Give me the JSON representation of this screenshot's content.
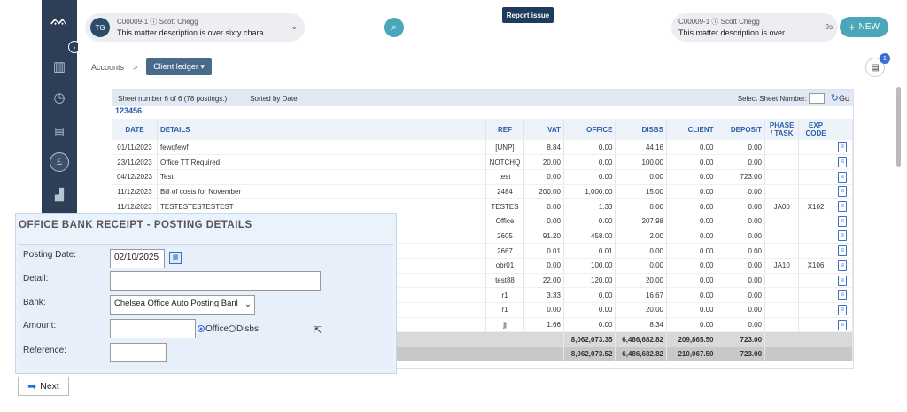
{
  "header": {
    "matter_left": {
      "avatar": "TG",
      "code": "C00009-1",
      "client": "Scott Chegg",
      "description": "This matter description is over sixty chara..."
    },
    "report_issue": "Report issue",
    "matter_right": {
      "code": "C00009-1",
      "client": "Scott Chegg",
      "description": "This matter description is over ...",
      "timer": "9s"
    },
    "new_label": "NEW",
    "notification_count": "1"
  },
  "breadcrumb": {
    "root": "Accounts",
    "sep": ">",
    "current": "Client ledger"
  },
  "sheet": {
    "info": "Sheet number 6 of 6 (78 postings.)",
    "sort": "Sorted by Date",
    "select_label": "Select Sheet Number:",
    "go_label": "Go",
    "pages": "123456"
  },
  "columns": [
    "DATE",
    "DETAILS",
    "REF",
    "VAT",
    "OFFICE",
    "DISBS",
    "CLIENT",
    "DEPOSIT",
    "PHASE / TASK",
    "EXP CODE"
  ],
  "rows": [
    {
      "date": "01/11/2023",
      "details": "fewqfewf",
      "ref": "[UNP]",
      "vat": "8.84",
      "office": "0.00",
      "disbs": "44.16",
      "client": "0.00",
      "deposit": "0.00",
      "phase": "",
      "exp": "",
      "office_red": false,
      "disbs_red": false
    },
    {
      "date": "23/11/2023",
      "details": "Office TT Required",
      "ref": "NOTCHQ",
      "vat": "20.00",
      "office": "0.00",
      "disbs": "100.00",
      "client": "0.00",
      "deposit": "0.00",
      "phase": "",
      "exp": "",
      "office_red": false,
      "disbs_red": false
    },
    {
      "date": "04/12/2023",
      "details": "Test",
      "ref": "test",
      "vat": "0.00",
      "office": "0.00",
      "disbs": "0.00",
      "client": "0.00",
      "deposit": "723.00",
      "phase": "",
      "exp": "",
      "office_red": false,
      "disbs_red": false
    },
    {
      "date": "11/12/2023",
      "details": "Bill of costs for November",
      "ref": "2484",
      "vat": "200.00",
      "office": "1,000.00",
      "disbs": "15.00",
      "client": "0.00",
      "deposit": "0.00",
      "phase": "",
      "exp": "",
      "office_red": false,
      "disbs_red": true
    },
    {
      "date": "11/12/2023",
      "details": "TESTESTESTESTEST",
      "ref": "TESTES",
      "vat": "0.00",
      "office": "1.33",
      "disbs": "0.00",
      "client": "0.00",
      "deposit": "0.00",
      "phase": "JA00",
      "exp": "X102",
      "office_red": true,
      "disbs_red": false
    },
    {
      "date": "",
      "details": "",
      "ref": "Office",
      "vat": "0.00",
      "office": "0.00",
      "disbs": "207.98",
      "client": "0.00",
      "deposit": "0.00",
      "phase": "",
      "exp": "",
      "office_red": false,
      "disbs_red": true
    },
    {
      "date": "",
      "details": "",
      "ref": "2605",
      "vat": "91.20",
      "office": "458.00",
      "disbs": "2.00",
      "client": "0.00",
      "deposit": "0.00",
      "phase": "",
      "exp": "",
      "office_red": false,
      "disbs_red": true
    },
    {
      "date": "",
      "details": "",
      "ref": "2667",
      "vat": "0.01",
      "office": "0.01",
      "disbs": "0.00",
      "client": "0.00",
      "deposit": "0.00",
      "phase": "",
      "exp": "",
      "office_red": false,
      "disbs_red": false
    },
    {
      "date": "",
      "details": "",
      "ref": "obr01",
      "vat": "0.00",
      "office": "100.00",
      "disbs": "0.00",
      "client": "0.00",
      "deposit": "0.00",
      "phase": "JA10",
      "exp": "X106",
      "office_red": true,
      "disbs_red": false
    },
    {
      "date": "",
      "details": "",
      "ref": "test88",
      "vat": "22.00",
      "office": "120.00",
      "disbs": "20.00",
      "client": "0.00",
      "deposit": "0.00",
      "phase": "",
      "exp": "",
      "office_red": false,
      "disbs_red": true
    },
    {
      "date": "",
      "details": "",
      "ref": "r1",
      "vat": "3.33",
      "office": "0.00",
      "disbs": "16.67",
      "client": "0.00",
      "deposit": "0.00",
      "phase": "",
      "exp": "",
      "office_red": false,
      "disbs_red": false
    },
    {
      "date": "",
      "details": "",
      "ref": "r1",
      "vat": "0.00",
      "office": "0.00",
      "disbs": "20.00",
      "client": "0.00",
      "deposit": "0.00",
      "phase": "",
      "exp": "",
      "office_red": false,
      "disbs_red": true
    },
    {
      "date": "",
      "details": "",
      "ref": "jj",
      "vat": "1.66",
      "office": "0.00",
      "disbs": "8.34",
      "client": "0.00",
      "deposit": "0.00",
      "phase": "",
      "exp": "",
      "office_red": false,
      "disbs_red": true
    }
  ],
  "totals": [
    {
      "office": "8,062,073.35",
      "disbs": "6,486,682.82",
      "client": "209,865.50",
      "deposit": "723.00"
    },
    {
      "office": "8,062,073.52",
      "disbs": "6,486,682.82",
      "client": "210,067.50",
      "deposit": "723.00"
    }
  ],
  "dialog": {
    "title": "OFFICE BANK RECEIPT - POSTING DETAILS",
    "posting_date_label": "Posting Date:",
    "posting_date_value": "02/10/2025",
    "detail_label": "Detail:",
    "detail_value": "",
    "bank_label": "Bank:",
    "bank_value": "Chelsea Office Auto Posting Banl",
    "amount_label": "Amount:",
    "amount_value": "",
    "radio_office": "Office",
    "radio_disbs": "Disbs",
    "reference_label": "Reference:",
    "reference_value": ""
  },
  "next_label": "Next",
  "colors": {
    "sidebar": "#2d3e57",
    "accent": "#4aa6b8",
    "link": "#2b5fa9",
    "negative": "#d23c2a"
  }
}
